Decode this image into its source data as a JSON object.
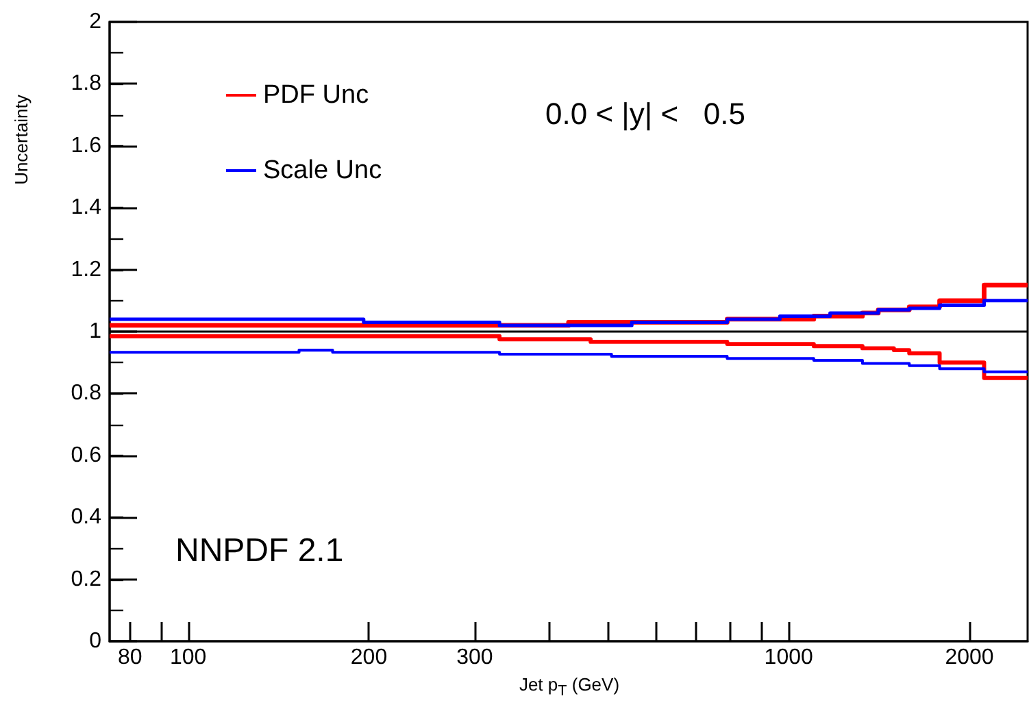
{
  "chart_data": {
    "type": "step",
    "xlabel": "Jet p$_{T}$ (GeV)",
    "ylabel": "Uncertainty",
    "annotations": [
      "0.0 < |y| <   0.5",
      "NNPDF 2.1"
    ],
    "xlim": [
      74,
      2500
    ],
    "ylim": [
      0,
      2
    ],
    "log": "x",
    "xticks": [
      80,
      {
        "value": 90,
        "label": null
      },
      100,
      200,
      300,
      {
        "value": 400,
        "label": null
      },
      {
        "value": 500,
        "label": null
      },
      {
        "value": 600,
        "label": null
      },
      {
        "value": 700,
        "label": null
      },
      {
        "value": 800,
        "label": null
      },
      {
        "value": 900,
        "label": null
      },
      1000,
      2000
    ],
    "yticks": [
      0,
      0.2,
      0.4,
      0.6,
      0.8,
      1,
      1.2,
      1.4,
      1.6,
      1.8,
      2
    ],
    "series": [
      {
        "name": "PDF Unc",
        "color": "#ff0000",
        "x": [
          74,
          430,
          790,
          1101,
          1327,
          1410,
          1588,
          1784,
          2116,
          2500
        ],
        "values": [
          1.02,
          1.03,
          1.04,
          1.05,
          1.06,
          1.07,
          1.08,
          1.1,
          1.15,
          1.15
        ]
      },
      {
        "color": "#ff0000",
        "x": [
          74,
          330,
          468,
          790,
          1101,
          1327,
          1497,
          1588,
          1784,
          2116,
          2500
        ],
        "values": [
          0.985,
          0.975,
          0.967,
          0.96,
          0.953,
          0.946,
          0.94,
          0.93,
          0.9,
          0.85,
          0.85
        ]
      },
      {
        "name": "Scale Unc",
        "color": "#0000ff",
        "x": [
          74,
          196,
          330,
          548,
          790,
          967,
          1172,
          1410,
          1588,
          1784,
          2116,
          2500
        ],
        "values": [
          1.04,
          1.03,
          1.02,
          1.03,
          1.04,
          1.05,
          1.06,
          1.07,
          1.075,
          1.085,
          1.1,
          1.1
        ]
      },
      {
        "color": "#0000ff",
        "x": [
          74,
          153,
          174,
          330,
          507,
          790,
          1101,
          1327,
          1588,
          1784,
          2116,
          2500
        ],
        "values": [
          0.933,
          0.94,
          0.933,
          0.927,
          0.92,
          0.913,
          0.907,
          0.897,
          0.89,
          0.88,
          0.87,
          0.87
        ]
      }
    ],
    "ref_lines": [
      {
        "axis": "y",
        "value": 1,
        "color": "#000000"
      }
    ],
    "legend": "top left",
    "grid": false,
    "marker": "none",
    "line_style": "solid"
  }
}
